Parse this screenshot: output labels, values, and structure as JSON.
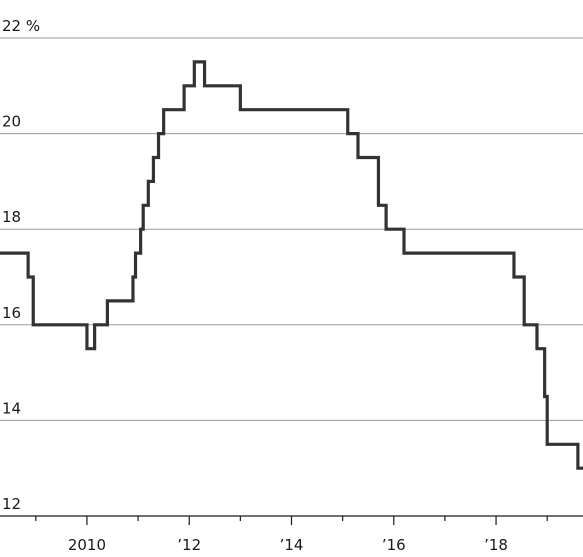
{
  "chart_data": {
    "type": "line",
    "line_style": "step",
    "grid": "horizontal",
    "xlim": [
      2008.3,
      2019.7
    ],
    "ylim": [
      12,
      22
    ],
    "y_ticks": [
      12,
      14,
      16,
      18,
      20,
      22
    ],
    "y_tick_labels": [
      "12",
      "14",
      "16",
      "18",
      "20",
      "22 %"
    ],
    "x_ticks": [
      2010,
      2012,
      2014,
      2016,
      2018
    ],
    "x_tick_labels": [
      "2010",
      "’12",
      "’14",
      "’16",
      "’18"
    ],
    "x_minor_ticks": [
      2009,
      2011,
      2013,
      2015,
      2017,
      2019
    ],
    "colors": {
      "line": "#333333",
      "grid": "#9a9a9a",
      "text": "#1a1a1a"
    },
    "series": [
      {
        "x": [
          2008.3,
          2008.7,
          2008.85,
          2008.95,
          2010.0,
          2010.15,
          2010.4,
          2010.9,
          2010.95,
          2011.05,
          2011.1,
          2011.2,
          2011.3,
          2011.4,
          2011.5,
          2011.9,
          2012.1,
          2012.3,
          2013.0,
          2015.1,
          2015.3,
          2015.7,
          2015.85,
          2016.2,
          2018.35,
          2018.55,
          2018.8,
          2018.95,
          2019.0,
          2019.6,
          2019.7
        ],
        "y": [
          17.5,
          17.5,
          17.0,
          16.0,
          15.5,
          16.0,
          16.5,
          17.0,
          17.5,
          18.0,
          18.5,
          19.0,
          19.5,
          20.0,
          20.5,
          21.0,
          21.5,
          21.0,
          20.5,
          20.0,
          19.5,
          18.5,
          18.0,
          17.5,
          17.0,
          16.0,
          15.5,
          14.5,
          13.5,
          13.0,
          13.0
        ]
      }
    ]
  }
}
